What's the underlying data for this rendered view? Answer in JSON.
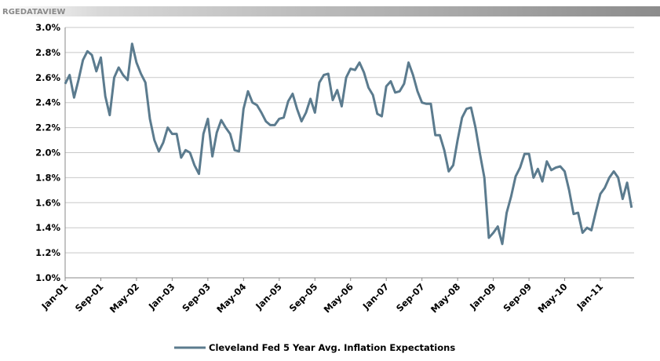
{
  "header": "RGEDATAVIEW",
  "chart_data": {
    "type": "line",
    "categories": [
      "Jan-01",
      null,
      null,
      null,
      null,
      null,
      null,
      null,
      "Sep-01",
      null,
      null,
      null,
      null,
      null,
      null,
      null,
      "May-02",
      null,
      null,
      null,
      null,
      null,
      null,
      null,
      "Jan-03",
      null,
      null,
      null,
      null,
      null,
      null,
      null,
      "Sep-03",
      null,
      null,
      null,
      null,
      null,
      null,
      null,
      "May-04",
      null,
      null,
      null,
      null,
      null,
      null,
      null,
      "Jan-05",
      null,
      null,
      null,
      null,
      null,
      null,
      null,
      "Sep-05",
      null,
      null,
      null,
      null,
      null,
      null,
      null,
      "May-06",
      null,
      null,
      null,
      null,
      null,
      null,
      null,
      "Jan-07",
      null,
      null,
      null,
      null,
      null,
      null,
      null,
      "Sep-07",
      null,
      null,
      null,
      null,
      null,
      null,
      null,
      "May-08",
      null,
      null,
      null,
      null,
      null,
      null,
      null,
      "Jan-09",
      null,
      null,
      null,
      null,
      null,
      null,
      null,
      "Sep-09",
      null,
      null,
      null,
      null,
      null,
      null,
      null,
      "May-10",
      null,
      null,
      null,
      null,
      null,
      null,
      null,
      "Jan-11",
      null,
      null,
      null,
      null,
      null,
      null,
      null
    ],
    "series": [
      {
        "name": "Cleveland Fed 5 Year Avg. Inflation Expectations",
        "color": "#5b7b8e",
        "values": [
          2.55,
          2.62,
          2.44,
          2.58,
          2.74,
          2.81,
          2.78,
          2.65,
          2.76,
          2.45,
          2.3,
          2.6,
          2.68,
          2.62,
          2.58,
          2.87,
          2.72,
          2.63,
          2.56,
          2.27,
          2.1,
          2.01,
          2.08,
          2.2,
          2.15,
          2.15,
          1.96,
          2.02,
          2.0,
          1.9,
          1.83,
          2.15,
          2.27,
          1.97,
          2.16,
          2.26,
          2.2,
          2.15,
          2.02,
          2.01,
          2.35,
          2.49,
          2.4,
          2.38,
          2.32,
          2.25,
          2.22,
          2.22,
          2.27,
          2.28,
          2.41,
          2.47,
          2.35,
          2.25,
          2.32,
          2.43,
          2.32,
          2.56,
          2.62,
          2.63,
          2.42,
          2.5,
          2.37,
          2.6,
          2.67,
          2.66,
          2.72,
          2.64,
          2.52,
          2.46,
          2.31,
          2.29,
          2.53,
          2.57,
          2.48,
          2.49,
          2.55,
          2.72,
          2.62,
          2.49,
          2.4,
          2.39,
          2.39,
          2.14,
          2.14,
          2.02,
          1.85,
          1.9,
          2.1,
          2.28,
          2.35,
          2.36,
          2.2,
          1.99,
          1.8,
          1.32,
          1.36,
          1.41,
          1.27,
          1.52,
          1.65,
          1.81,
          1.88,
          1.99,
          1.99,
          1.8,
          1.87,
          1.77,
          1.93,
          1.86,
          1.88,
          1.89,
          1.85,
          1.7,
          1.51,
          1.52,
          1.36,
          1.4,
          1.38,
          1.53,
          1.67,
          1.72,
          1.8,
          1.85,
          1.8,
          1.63,
          1.76,
          1.56
        ]
      }
    ],
    "ylim": [
      1.0,
      3.0
    ],
    "yticks": [
      {
        "value": 1.0,
        "label": "1.0%"
      },
      {
        "value": 1.2,
        "label": "1.2%"
      },
      {
        "value": 1.4,
        "label": "1.4%"
      },
      {
        "value": 1.6,
        "label": "1.6%"
      },
      {
        "value": 1.8,
        "label": "1.8%"
      },
      {
        "value": 2.0,
        "label": "2.0%"
      },
      {
        "value": 2.2,
        "label": "2.2%"
      },
      {
        "value": 2.4,
        "label": "2.4%"
      },
      {
        "value": 2.6,
        "label": "2.6%"
      },
      {
        "value": 2.8,
        "label": "2.8%"
      },
      {
        "value": 3.0,
        "label": "3.0%"
      }
    ],
    "grid": true,
    "legend": "bottom"
  }
}
